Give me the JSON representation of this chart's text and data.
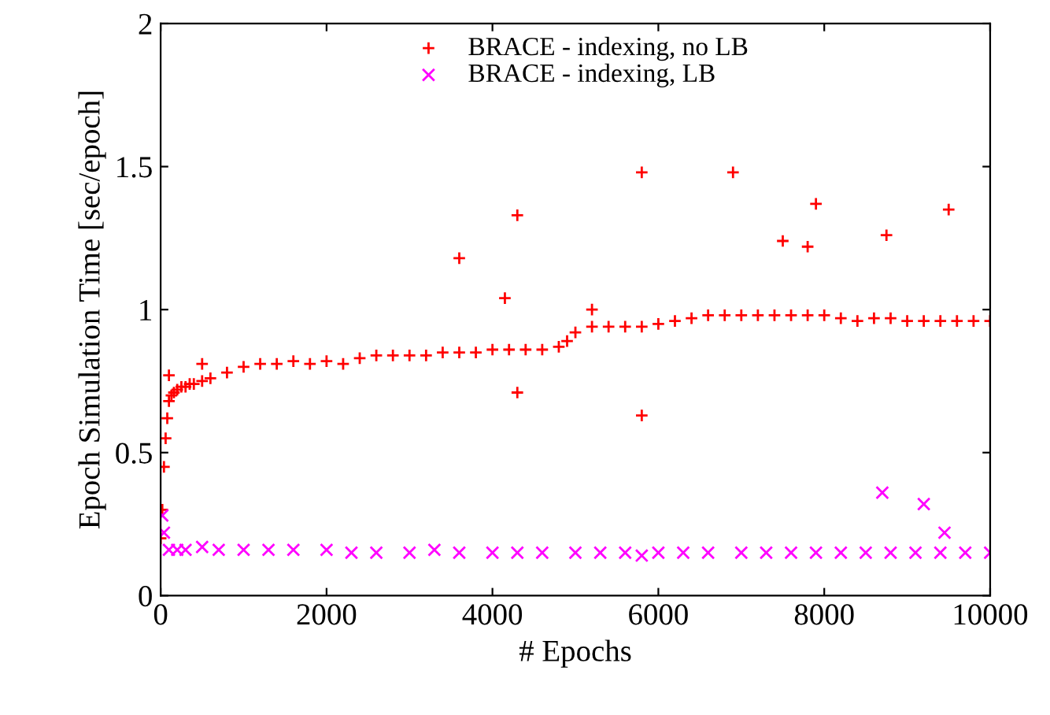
{
  "chart_data": {
    "type": "scatter",
    "xlabel": "# Epochs",
    "ylabel": "Epoch Simulation Time [sec/epoch]",
    "xlim": [
      0,
      10000
    ],
    "ylim": [
      0,
      2
    ],
    "xticks": [
      0,
      2000,
      4000,
      6000,
      8000,
      10000
    ],
    "yticks": [
      0,
      0.5,
      1,
      1.5,
      2
    ],
    "grid": false,
    "legend": "top",
    "series": [
      {
        "name": "BRACE - indexing, no LB",
        "color": "#ff0000",
        "marker": "plus",
        "x": [
          0,
          20,
          40,
          60,
          80,
          100,
          130,
          160,
          200,
          250,
          300,
          350,
          400,
          500,
          600,
          800,
          1000,
          1200,
          1400,
          1600,
          1800,
          2000,
          2200,
          2400,
          2600,
          2800,
          3000,
          3200,
          3400,
          3600,
          3800,
          4000,
          4200,
          4400,
          4600,
          4800,
          4900,
          5000,
          5200,
          5400,
          5600,
          5800,
          6000,
          6200,
          6400,
          6600,
          6800,
          7000,
          7200,
          7400,
          7600,
          7800,
          8000,
          8200,
          8400,
          8600,
          8800,
          9000,
          9200,
          9400,
          9600,
          9800,
          10000,
          100,
          500,
          3600,
          4150,
          4300,
          4300,
          5200,
          5800,
          5800,
          6900,
          7500,
          7800,
          7900,
          8750,
          9500
        ],
        "values": [
          0.2,
          0.3,
          0.45,
          0.55,
          0.62,
          0.68,
          0.7,
          0.71,
          0.72,
          0.73,
          0.73,
          0.74,
          0.74,
          0.75,
          0.76,
          0.78,
          0.8,
          0.81,
          0.81,
          0.82,
          0.81,
          0.82,
          0.81,
          0.83,
          0.84,
          0.84,
          0.84,
          0.84,
          0.85,
          0.85,
          0.85,
          0.86,
          0.86,
          0.86,
          0.86,
          0.87,
          0.89,
          0.92,
          0.94,
          0.94,
          0.94,
          0.94,
          0.95,
          0.96,
          0.97,
          0.98,
          0.98,
          0.98,
          0.98,
          0.98,
          0.98,
          0.98,
          0.98,
          0.97,
          0.96,
          0.97,
          0.97,
          0.96,
          0.96,
          0.96,
          0.96,
          0.96,
          0.96,
          0.77,
          0.81,
          1.18,
          1.04,
          1.33,
          0.71,
          1.0,
          1.48,
          0.63,
          1.48,
          1.24,
          1.22,
          1.37,
          1.26,
          1.35
        ]
      },
      {
        "name": "BRACE - indexing, LB",
        "color": "#ff00ff",
        "marker": "cross",
        "x": [
          20,
          40,
          100,
          200,
          300,
          500,
          700,
          1000,
          1300,
          1600,
          2000,
          2300,
          2600,
          3000,
          3300,
          3600,
          4000,
          4300,
          4600,
          5000,
          5300,
          5600,
          5800,
          6000,
          6300,
          6600,
          7000,
          7300,
          7600,
          7900,
          8200,
          8500,
          8800,
          9100,
          9400,
          9700,
          10000,
          8700,
          9200,
          9450
        ],
        "values": [
          0.28,
          0.22,
          0.16,
          0.16,
          0.16,
          0.17,
          0.16,
          0.16,
          0.16,
          0.16,
          0.16,
          0.15,
          0.15,
          0.15,
          0.16,
          0.15,
          0.15,
          0.15,
          0.15,
          0.15,
          0.15,
          0.15,
          0.14,
          0.15,
          0.15,
          0.15,
          0.15,
          0.15,
          0.15,
          0.15,
          0.15,
          0.15,
          0.15,
          0.15,
          0.15,
          0.15,
          0.15,
          0.36,
          0.32,
          0.22
        ]
      }
    ]
  }
}
